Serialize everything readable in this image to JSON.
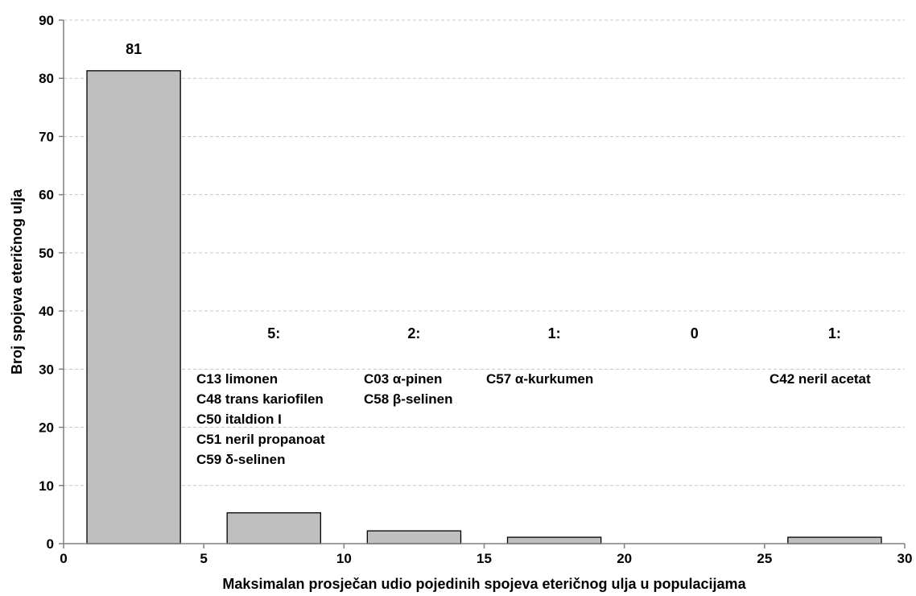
{
  "chart_data": {
    "type": "bar",
    "xlabel": "Maksimalan prosječan udio pojedinih spojeva eteričnog ulja u populacijama",
    "ylabel": "Broj spojeva eteričnog ulja",
    "xlim": [
      0,
      30
    ],
    "ylim": [
      0,
      90
    ],
    "x_ticks": [
      0,
      5,
      10,
      15,
      20,
      25,
      30
    ],
    "y_ticks": [
      0,
      10,
      20,
      30,
      40,
      50,
      60,
      70,
      80,
      90
    ],
    "grid": "horizontal dashed",
    "bars": [
      {
        "x_range": [
          0,
          5
        ],
        "value": 81.3,
        "label": "81",
        "compounds": []
      },
      {
        "x_range": [
          5,
          10
        ],
        "value": 5.3,
        "label": "5:",
        "compounds": [
          "C13 limonen",
          "C48 trans kariofilen",
          "C50 italdion I",
          "C51 neril propanoat",
          "C59 δ-selinen"
        ]
      },
      {
        "x_range": [
          10,
          15
        ],
        "value": 2.2,
        "label": "2:",
        "compounds": [
          "C03 α-pinen",
          "C58 β-selinen"
        ]
      },
      {
        "x_range": [
          15,
          20
        ],
        "value": 1.1,
        "label": "1:",
        "compounds": [
          "C57 α-kurkumen"
        ]
      },
      {
        "x_range": [
          20,
          25
        ],
        "value": 0,
        "label": "0",
        "compounds": []
      },
      {
        "x_range": [
          25,
          30
        ],
        "value": 1.1,
        "label": "1:",
        "compounds": [
          "C42 neril acetat"
        ]
      }
    ]
  }
}
